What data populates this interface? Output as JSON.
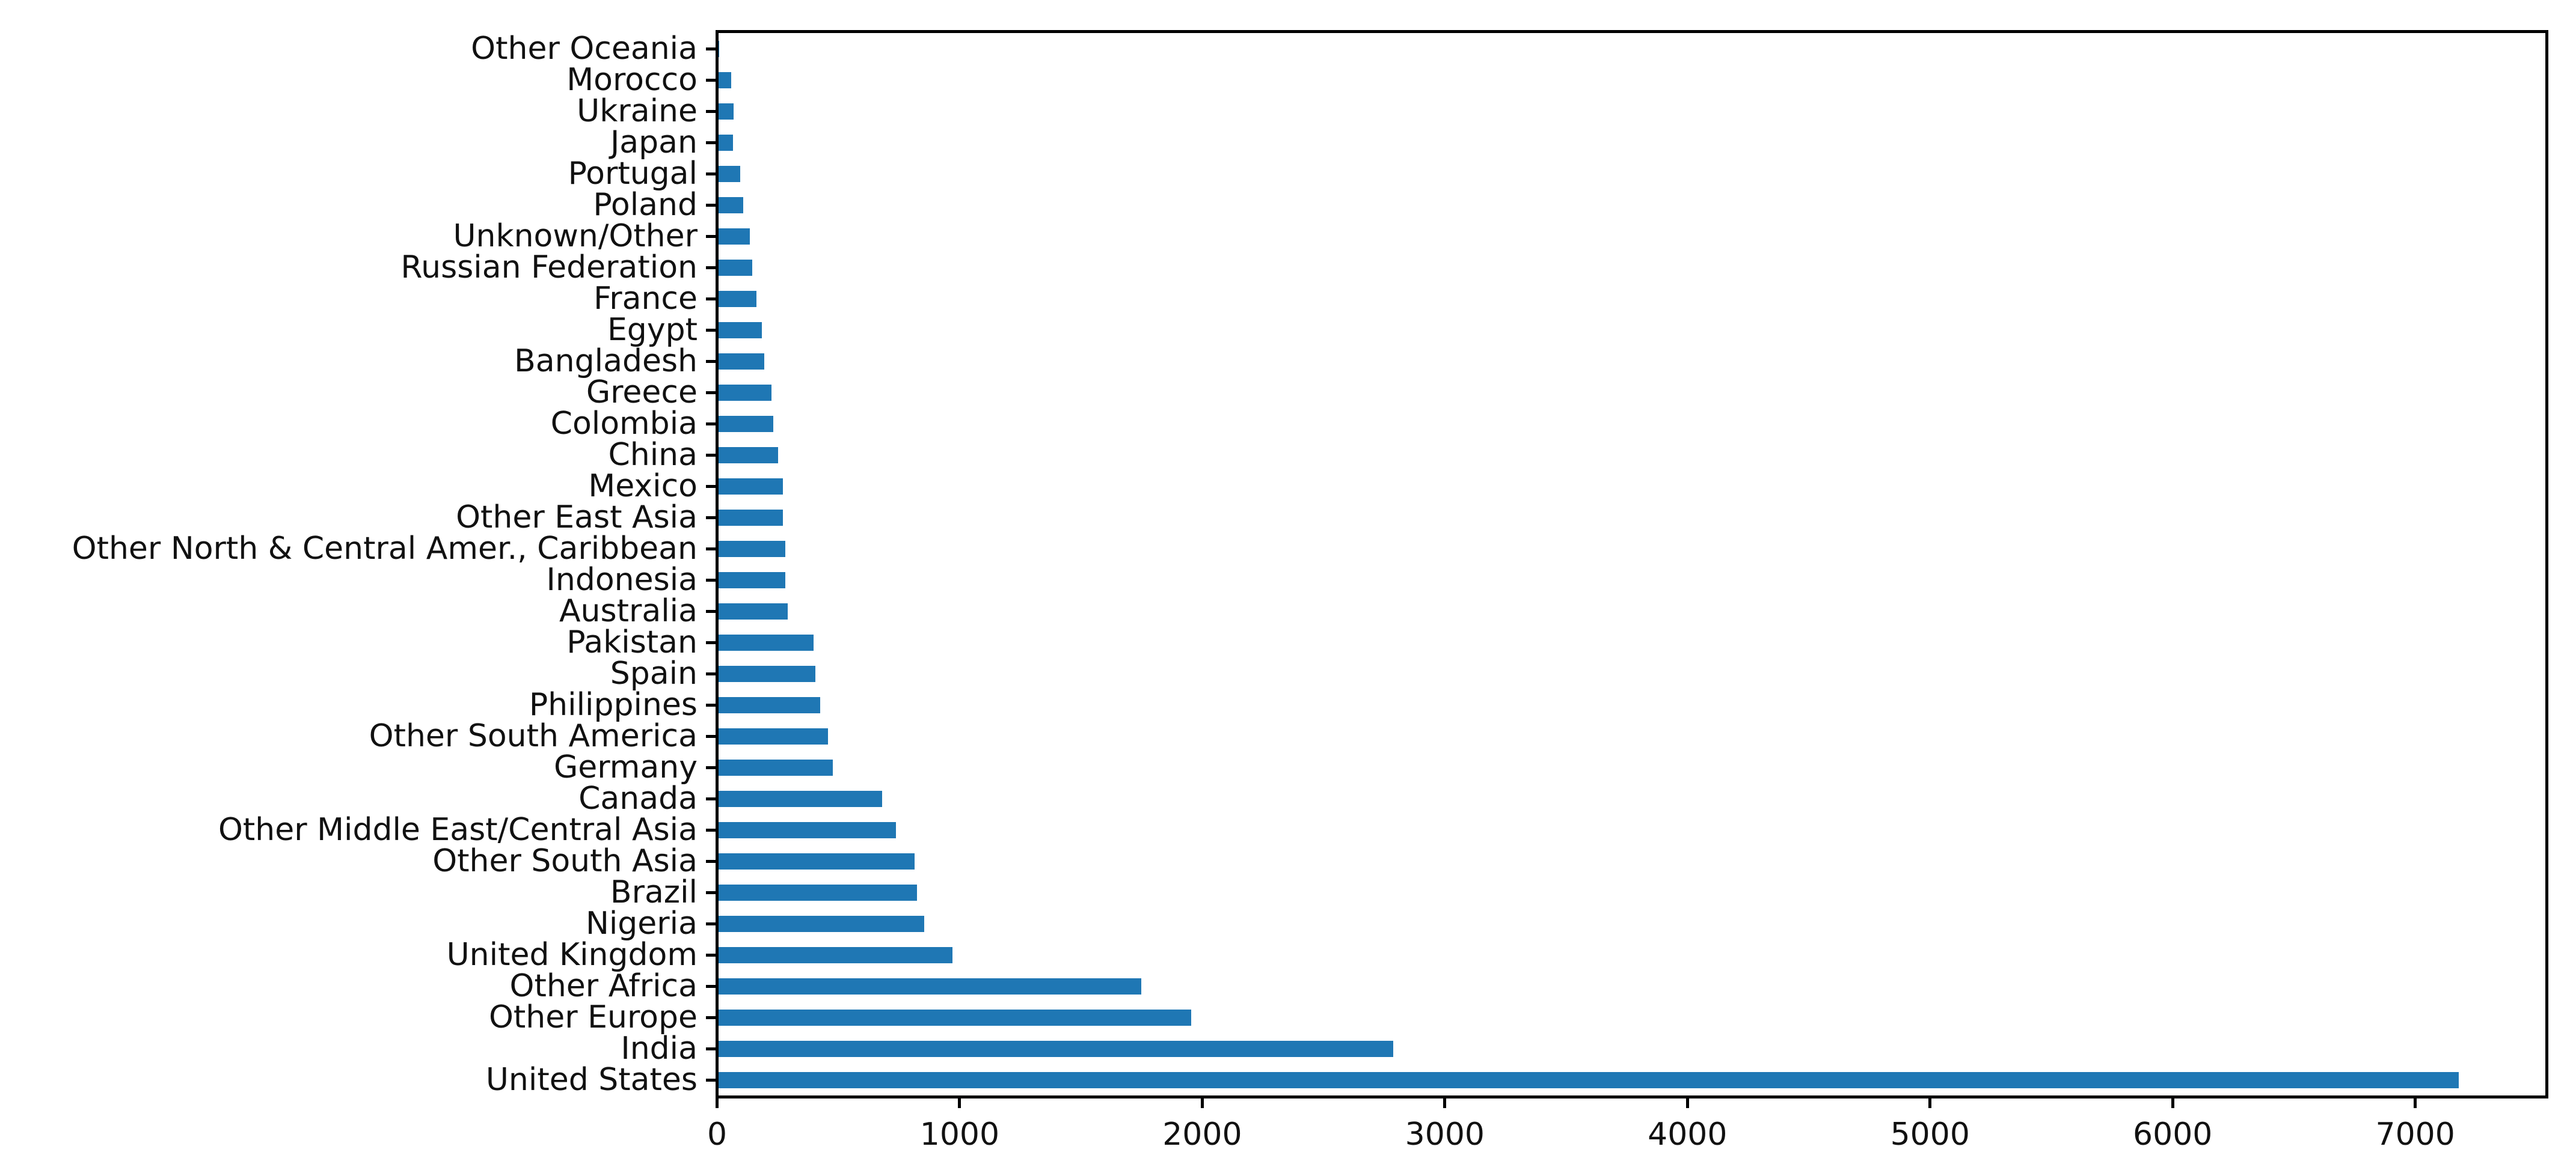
{
  "figure": {
    "background": "#ffffff"
  },
  "chart_data": {
    "type": "bar",
    "orientation": "horizontal",
    "title": "",
    "xlabel": "",
    "ylabel": "",
    "categories": [
      "Other Oceania",
      "Morocco",
      "Ukraine",
      "Japan",
      "Portugal",
      "Poland",
      "Unknown/Other",
      "Russian Federation",
      "France",
      "Egypt",
      "Bangladesh",
      "Greece",
      "Colombia",
      "China",
      "Mexico",
      "Other East Asia",
      "Other North & Central Amer., Caribbean",
      "Indonesia",
      "Australia",
      "Pakistan",
      "Spain",
      "Philippines",
      "Other South America",
      "Germany",
      "Canada",
      "Other Middle East/Central Asia",
      "Other South Asia",
      "Brazil",
      "Nigeria",
      "United Kingdom",
      "Other Africa",
      "Other Europe",
      "India",
      "United States"
    ],
    "values": [
      2,
      51,
      61,
      60,
      90,
      101,
      129,
      138,
      157,
      179,
      188,
      217,
      226,
      246,
      265,
      265,
      275,
      275,
      285,
      391,
      400,
      420,
      450,
      470,
      673,
      731,
      809,
      819,
      847,
      963,
      1743,
      1948,
      2782,
      7172
    ],
    "xlim": [
      0,
      7530
    ],
    "xticks": [
      0,
      1000,
      2000,
      3000,
      4000,
      5000,
      6000,
      7000
    ],
    "grid": false,
    "legend": false,
    "bar_color": "#1f77b4",
    "axis_color": "#000000",
    "text_color": "#111111"
  }
}
